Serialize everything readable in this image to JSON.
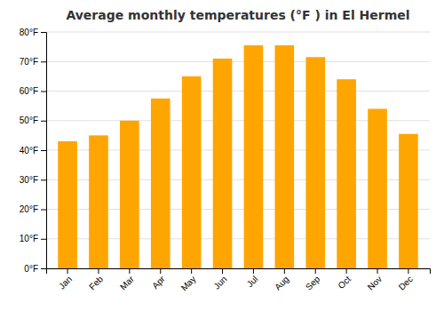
{
  "chart_data": {
    "type": "bar",
    "title": "Average monthly temperatures (°F ) in El Hermel",
    "categories": [
      "Jan",
      "Feb",
      "Mar",
      "Apr",
      "May",
      "Jun",
      "Jul",
      "Aug",
      "Sep",
      "Oct",
      "Nov",
      "Dec"
    ],
    "values": [
      43,
      45,
      50,
      57.5,
      65,
      71,
      75.5,
      75.5,
      71.5,
      64,
      54,
      45.5
    ],
    "color": "#FFA500",
    "ylim": [
      0,
      80
    ],
    "yticks": [
      {
        "value": 0,
        "label": "0°F"
      },
      {
        "value": 10,
        "label": "10°F"
      },
      {
        "value": 20,
        "label": "20°F"
      },
      {
        "value": 30,
        "label": "30°F"
      },
      {
        "value": 40,
        "label": "40°F"
      },
      {
        "value": 50,
        "label": "50°F"
      },
      {
        "value": 60,
        "label": "60°F"
      },
      {
        "value": 70,
        "label": "70°F"
      },
      {
        "value": 80,
        "label": "80°F"
      }
    ],
    "grid": true
  }
}
